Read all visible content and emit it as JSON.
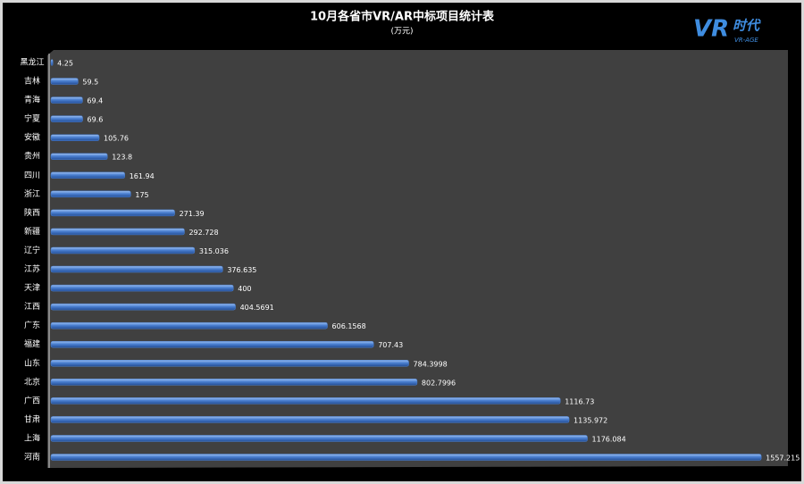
{
  "chart_data": {
    "type": "bar",
    "orientation": "horizontal",
    "title": "10月各省市VR/AR中标项目统计表",
    "subtitle": "(万元)",
    "logo": {
      "mark": "VR",
      "text": "时代",
      "subtext": "VR-AGE"
    },
    "categories": [
      "黑龙江",
      "吉林",
      "青海",
      "宁夏",
      "安徽",
      "贵州",
      "四川",
      "浙江",
      "陕西",
      "新疆",
      "辽宁",
      "江苏",
      "天津",
      "江西",
      "广东",
      "福建",
      "山东",
      "北京",
      "广西",
      "甘肃",
      "上海",
      "河南"
    ],
    "values": [
      4.25,
      59.5,
      69.4,
      69.6,
      105.76,
      123.8,
      161.94,
      175,
      271.39,
      292.728,
      315.036,
      376.635,
      400,
      404.5691,
      606.1568,
      707.43,
      784.3998,
      802.7996,
      1116.73,
      1135.972,
      1176.084,
      1557.215
    ],
    "color": "#4a7fd0",
    "xlim": [
      0,
      1600
    ]
  }
}
